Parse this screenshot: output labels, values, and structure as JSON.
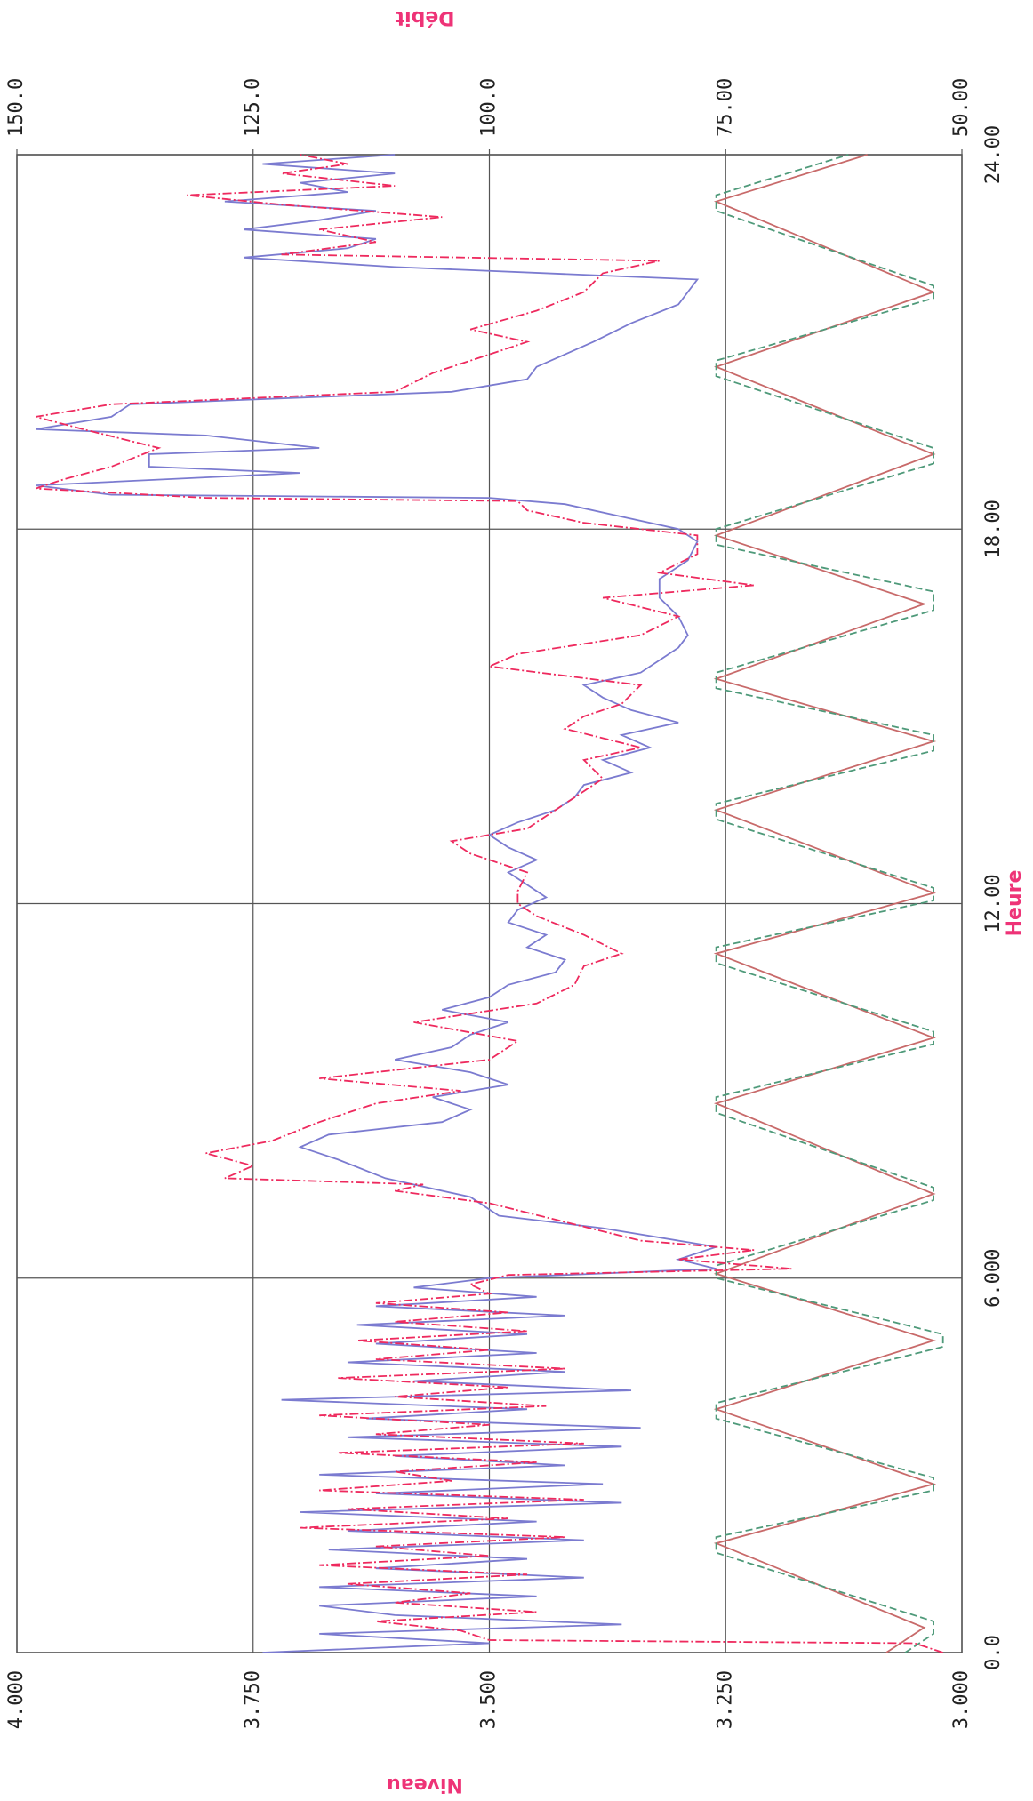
{
  "chart_data": {
    "type": "line",
    "xlabel": "Heure",
    "ylabel": "Niveau",
    "y2label": "Débit",
    "grid": true,
    "xlim": [
      0,
      24
    ],
    "xticks": [
      {
        "value": 0,
        "label": "0.0"
      },
      {
        "value": 6,
        "label": "6.000"
      },
      {
        "value": 12,
        "label": "12.00"
      },
      {
        "value": 18,
        "label": "18.00"
      },
      {
        "value": 24,
        "label": "24.00"
      }
    ],
    "ylim": [
      3,
      4
    ],
    "yticks": [
      {
        "value": 3,
        "label": "3.000"
      },
      {
        "value": 3.25,
        "label": "3.250"
      },
      {
        "value": 3.5,
        "label": "3.500"
      },
      {
        "value": 3.75,
        "label": "3.750"
      },
      {
        "value": 4,
        "label": "4.000"
      }
    ],
    "y2lim": [
      50,
      150
    ],
    "y2ticks": [
      {
        "value": 50,
        "label": "50.00"
      },
      {
        "value": 75,
        "label": "75.00"
      },
      {
        "value": 100,
        "label": "100.0"
      },
      {
        "value": 125,
        "label": "125.0"
      },
      {
        "value": 150,
        "label": "150.0"
      }
    ],
    "series": [
      {
        "color": "#c86a6a",
        "dash": "solid",
        "axis": "y",
        "x": [
          0,
          0.4,
          1.75,
          2.7,
          3.9,
          5.0,
          6.07,
          7.35,
          8.8,
          9.85,
          11.2,
          12.17,
          13.5,
          14.6,
          15.6,
          16.8,
          17.9,
          19.2,
          20.6,
          21.8,
          23.25,
          24
        ],
        "values": [
          3.08,
          3.04,
          3.26,
          3.03,
          3.26,
          3.03,
          3.26,
          3.03,
          3.26,
          3.03,
          3.26,
          3.03,
          3.26,
          3.03,
          3.26,
          3.04,
          3.26,
          3.03,
          3.26,
          3.03,
          3.26,
          3.1
        ]
      },
      {
        "color": "#4f9a7a",
        "dash": "8,4",
        "axis": "y",
        "x": [
          0,
          0.3,
          0.5,
          1.6,
          1.85,
          2.6,
          2.8,
          3.75,
          4.0,
          4.9,
          5.1,
          6.0,
          6.2,
          7.25,
          7.45,
          8.65,
          8.9,
          9.75,
          9.95,
          11.05,
          11.3,
          12.05,
          12.25,
          13.35,
          13.6,
          14.45,
          14.7,
          15.45,
          15.7,
          16.7,
          17.0,
          17.75,
          18.0,
          19.05,
          19.3,
          20.45,
          20.7,
          21.7,
          21.9,
          23.1,
          23.35,
          24
        ],
        "values": [
          3.06,
          3.03,
          3.03,
          3.26,
          3.26,
          3.03,
          3.03,
          3.26,
          3.26,
          3.02,
          3.02,
          3.26,
          3.26,
          3.03,
          3.03,
          3.26,
          3.26,
          3.03,
          3.03,
          3.26,
          3.26,
          3.03,
          3.03,
          3.26,
          3.26,
          3.03,
          3.03,
          3.26,
          3.26,
          3.03,
          3.03,
          3.26,
          3.26,
          3.03,
          3.03,
          3.26,
          3.26,
          3.03,
          3.03,
          3.26,
          3.26,
          3.12
        ]
      },
      {
        "color": "#7b7bd0",
        "dash": "solid",
        "axis": "y2",
        "x": [
          0,
          0.15,
          0.3,
          0.45,
          0.6,
          0.75,
          0.9,
          1.05,
          1.2,
          1.35,
          1.5,
          1.65,
          1.8,
          1.95,
          2.1,
          2.25,
          2.4,
          2.55,
          2.7,
          2.85,
          3.0,
          3.15,
          3.3,
          3.45,
          3.6,
          3.75,
          3.9,
          4.05,
          4.2,
          4.35,
          4.5,
          4.65,
          4.8,
          4.95,
          5.1,
          5.25,
          5.4,
          5.55,
          5.7,
          5.85,
          6.0,
          6.15,
          6.3,
          6.5,
          6.8,
          7.0,
          7.3,
          7.6,
          7.9,
          8.1,
          8.3,
          8.5,
          8.7,
          8.9,
          9.1,
          9.3,
          9.5,
          9.7,
          9.9,
          10.1,
          10.3,
          10.5,
          10.7,
          10.9,
          11.1,
          11.3,
          11.5,
          11.7,
          11.9,
          12.1,
          12.3,
          12.5,
          12.7,
          12.9,
          13.1,
          13.3,
          13.5,
          13.7,
          13.9,
          14.1,
          14.3,
          14.5,
          14.7,
          14.9,
          15.1,
          15.3,
          15.5,
          15.7,
          15.9,
          16.1,
          16.3,
          16.6,
          16.9,
          17.2,
          17.5,
          17.8,
          18.0,
          18.2,
          18.4,
          18.5,
          18.55,
          18.7,
          18.9,
          19.0,
          19.2,
          19.3,
          19.5,
          19.6,
          19.8,
          20.0,
          20.2,
          20.4,
          20.6,
          20.8,
          21.0,
          21.3,
          21.6,
          21.8,
          22.0,
          22.2,
          22.35,
          22.5,
          22.65,
          22.8,
          22.95,
          23.1,
          23.25,
          23.4,
          23.55,
          23.7,
          23.85,
          24
        ],
        "values": [
          124,
          100,
          118,
          86,
          110,
          118,
          95,
          118,
          90,
          112,
          96,
          117,
          90,
          115,
          95,
          120,
          86,
          112,
          88,
          118,
          92,
          110,
          86,
          115,
          84,
          113,
          96,
          122,
          85,
          108,
          92,
          115,
          95,
          112,
          96,
          114,
          92,
          112,
          95,
          108,
          100,
          76,
          80,
          76,
          88,
          99,
          102,
          111,
          116,
          120,
          117,
          105,
          102,
          106,
          98,
          102,
          110,
          104,
          102,
          98,
          105,
          100,
          98,
          93,
          92,
          96,
          94,
          98,
          97,
          94,
          96,
          98,
          95,
          98,
          100,
          97,
          93,
          91,
          90,
          85,
          88,
          83,
          86,
          80,
          85,
          88,
          90,
          84,
          82,
          80,
          79,
          80,
          82,
          82,
          79,
          78,
          80,
          86,
          92,
          100,
          140,
          148,
          120,
          136,
          136,
          118,
          130,
          148,
          140,
          138,
          104,
          96,
          95,
          92,
          89,
          85,
          80,
          79,
          78,
          110,
          126,
          115,
          112,
          126,
          118,
          112,
          128,
          115,
          120,
          110,
          124,
          110
        ]
      },
      {
        "color": "#ee2a5e",
        "dash": "10,3,2,3",
        "axis": "y2",
        "x": [
          0,
          0.15,
          0.2,
          0.35,
          0.5,
          0.65,
          0.8,
          0.95,
          1.1,
          1.25,
          1.4,
          1.55,
          1.7,
          1.85,
          2.0,
          2.15,
          2.3,
          2.45,
          2.6,
          2.75,
          2.9,
          3.05,
          3.2,
          3.35,
          3.5,
          3.65,
          3.8,
          3.95,
          4.1,
          4.25,
          4.4,
          4.55,
          4.7,
          4.85,
          5.0,
          5.15,
          5.3,
          5.45,
          5.6,
          5.75,
          5.9,
          6.05,
          6.15,
          6.3,
          6.45,
          6.6,
          6.9,
          7.2,
          7.4,
          7.5,
          7.6,
          7.8,
          8.0,
          8.2,
          8.5,
          8.8,
          9.0,
          9.2,
          9.5,
          9.8,
          10.1,
          10.4,
          10.7,
          11.0,
          11.2,
          11.5,
          11.8,
          12.0,
          12.2,
          12.5,
          12.8,
          13.0,
          13.2,
          13.5,
          13.8,
          14.0,
          14.3,
          14.5,
          14.8,
          15.0,
          15.2,
          15.5,
          15.8,
          16.0,
          16.3,
          16.6,
          16.9,
          17.1,
          17.3,
          17.6,
          17.9,
          18.1,
          18.3,
          18.45,
          18.5,
          18.65,
          18.8,
          19.0,
          19.3,
          19.6,
          19.8,
          20.0,
          20.2,
          20.5,
          20.8,
          21.0,
          21.2,
          21.5,
          21.8,
          22.1,
          22.3,
          22.4,
          22.6,
          22.8,
          23.0,
          23.2,
          23.35,
          23.5,
          23.7,
          23.85,
          24
        ],
        "values": [
          52,
          55,
          100,
          103,
          112,
          95,
          110,
          102,
          115,
          96,
          118,
          100,
          112,
          92,
          120,
          98,
          115,
          90,
          118,
          104,
          110,
          95,
          116,
          90,
          112,
          100,
          118,
          94,
          110,
          98,
          116,
          92,
          112,
          100,
          114,
          96,
          110,
          98,
          112,
          100,
          102,
          98,
          68,
          80,
          72,
          84,
          92,
          100,
          110,
          107,
          128,
          125,
          130,
          123,
          118,
          112,
          103,
          118,
          100,
          97,
          108,
          95,
          91,
          90,
          86,
          90,
          95,
          97,
          97,
          96,
          102,
          104,
          96,
          93,
          90,
          88,
          90,
          84,
          92,
          90,
          86,
          84,
          100,
          97,
          84,
          80,
          88,
          72,
          82,
          78,
          78,
          90,
          96,
          97,
          130,
          148,
          145,
          140,
          135,
          143,
          148,
          140,
          110,
          106,
          100,
          96,
          102,
          95,
          90,
          88,
          82,
          122,
          112,
          118,
          105,
          122,
          132,
          110,
          122,
          115,
          120
        ]
      }
    ]
  }
}
